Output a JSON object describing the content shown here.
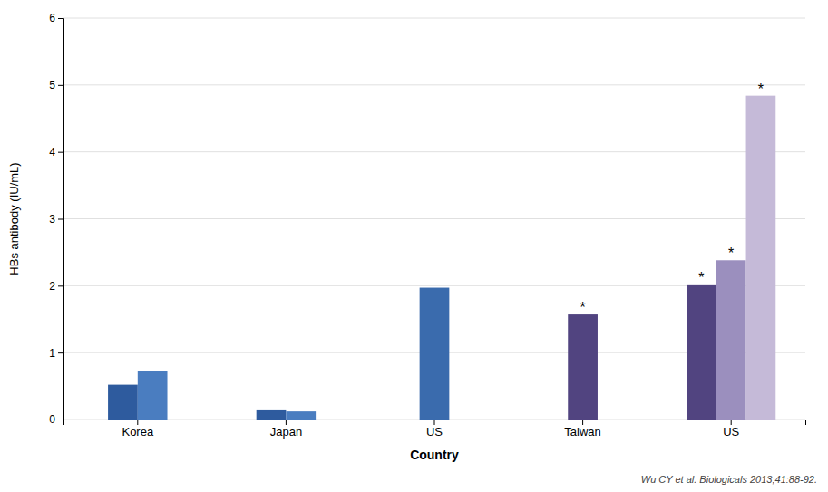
{
  "chart_data": {
    "type": "bar",
    "xlabel": "Country",
    "ylabel": "HBs antibody (IU/mL)",
    "caption": "Wu CY et al. Biologicals 2013;41:88-92.",
    "categories": [
      "Korea",
      "Japan",
      "US",
      "Taiwan",
      "US"
    ],
    "series": [
      {
        "values": [
          0.52,
          0.15,
          1.97,
          1.57,
          2.02
        ],
        "colors": [
          "#2E5B9E",
          "#2E5B9E",
          "#3A6BAD",
          "#514480",
          "#514480"
        ]
      },
      {
        "values": [
          0.72,
          0.12,
          null,
          null,
          2.38
        ],
        "colors": [
          "#4A7DC0",
          "#4A7DC0",
          null,
          null,
          "#9B8FBE"
        ]
      },
      {
        "values": [
          null,
          null,
          null,
          null,
          4.84
        ],
        "colors": [
          null,
          null,
          null,
          null,
          "#C5BAD8"
        ]
      }
    ],
    "annotations": [
      {
        "text": "*",
        "category": 3,
        "series": 0,
        "y": 1.57
      },
      {
        "text": "*",
        "category": 4,
        "series": 0,
        "y": 2.02
      },
      {
        "text": "*",
        "category": 4,
        "series": 1,
        "y": 2.38
      },
      {
        "text": "*",
        "category": 4,
        "series": 2,
        "y": 4.84
      }
    ],
    "ylim": [
      0,
      6
    ],
    "yticks": [
      0,
      1,
      2,
      3,
      4,
      5,
      6
    ],
    "grid": true
  }
}
